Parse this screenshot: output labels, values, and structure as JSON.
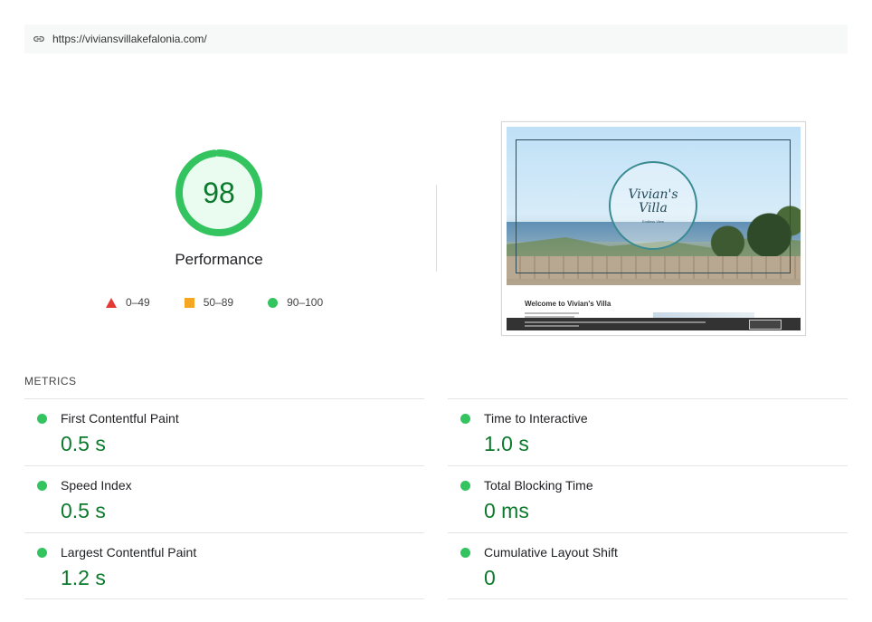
{
  "url_bar": {
    "icon": "link-icon",
    "url": "https://viviansvillakefalonia.com/"
  },
  "gauge": {
    "score": "98",
    "score_value": 98,
    "label": "Performance",
    "color": "#0cce6b"
  },
  "legend": {
    "items": [
      {
        "shape": "triangle",
        "color": "#e53935",
        "label": "0–49"
      },
      {
        "shape": "square",
        "color": "#f5a623",
        "label": "50–89"
      },
      {
        "shape": "circle",
        "color": "#33c460",
        "label": "90–100"
      }
    ]
  },
  "screenshot": {
    "logo_line1": "Vivian's",
    "logo_line2": "Villa",
    "logo_sub": "Endless View",
    "heading": "Welcome to Vivian's Villa"
  },
  "metrics": {
    "title": "METRICS",
    "items": [
      {
        "name": "First Contentful Paint",
        "value": "0.5 s",
        "status": "pass"
      },
      {
        "name": "Time to Interactive",
        "value": "1.0 s",
        "status": "pass"
      },
      {
        "name": "Speed Index",
        "value": "0.5 s",
        "status": "pass"
      },
      {
        "name": "Total Blocking Time",
        "value": "0 ms",
        "status": "pass"
      },
      {
        "name": "Largest Contentful Paint",
        "value": "1.2 s",
        "status": "pass"
      },
      {
        "name": "Cumulative Layout Shift",
        "value": "0",
        "status": "pass"
      }
    ]
  }
}
